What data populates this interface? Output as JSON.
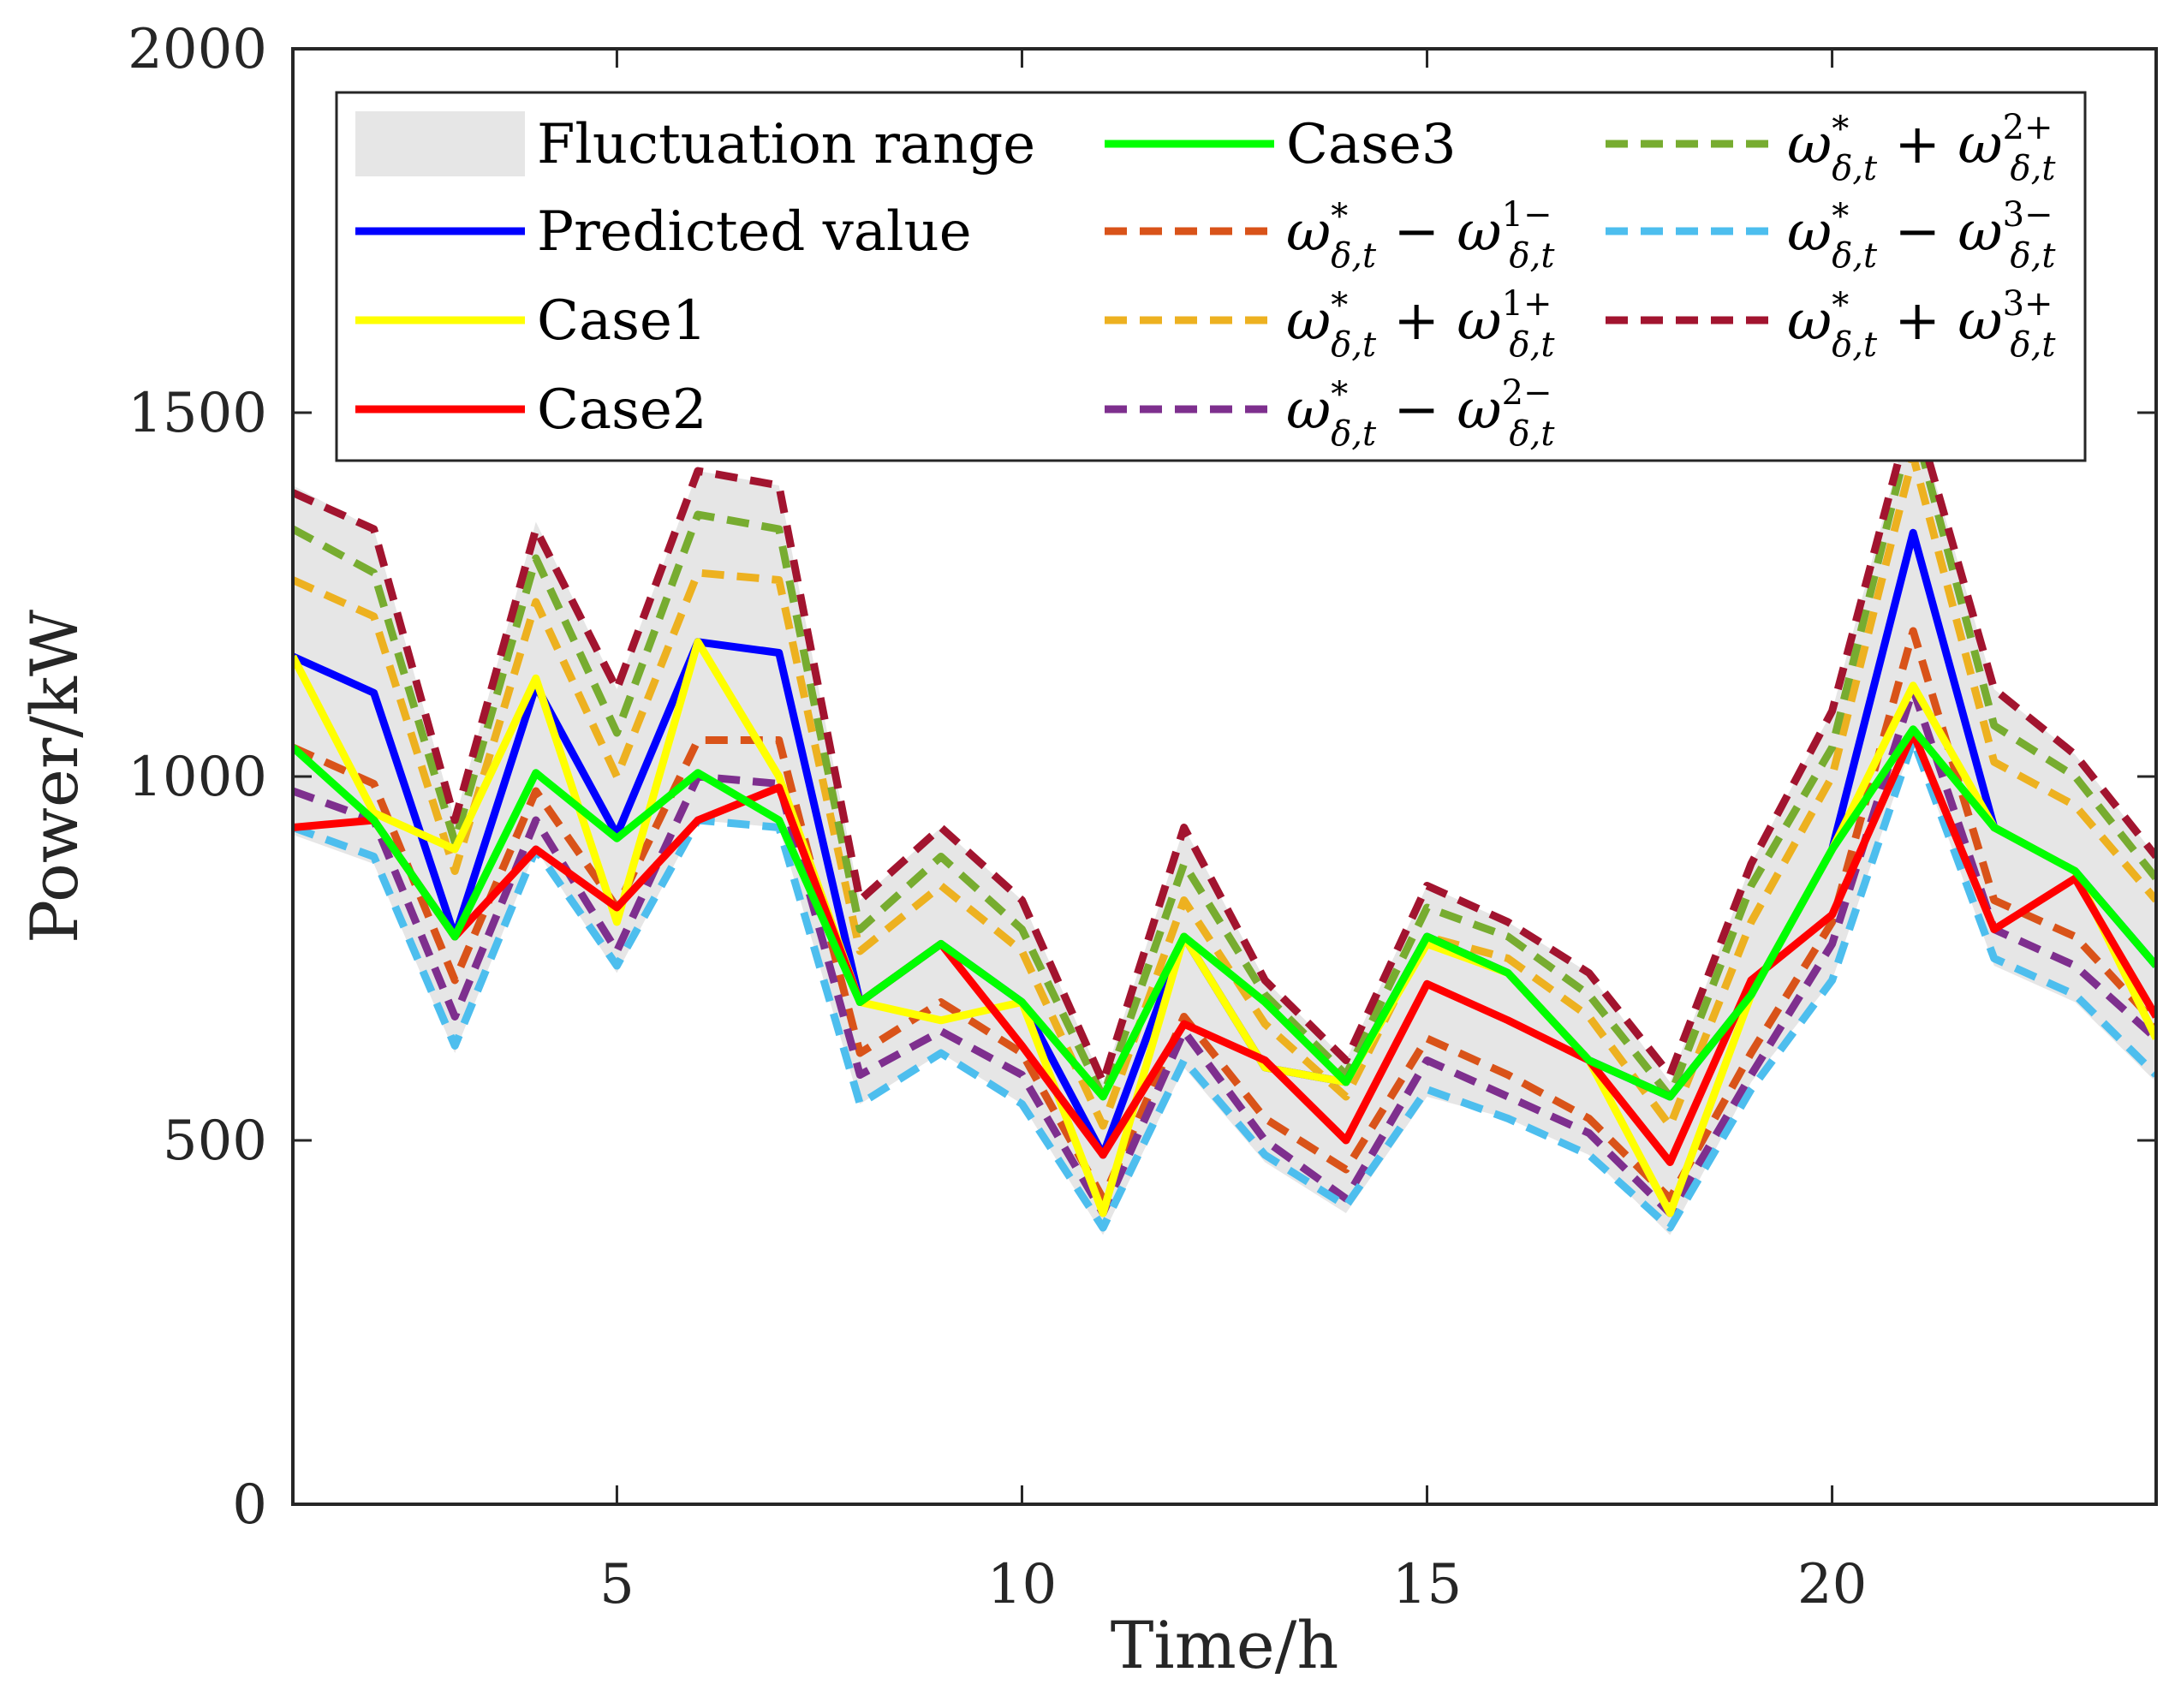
{
  "chart_data": {
    "type": "line",
    "title": "",
    "xlabel": "Time/h",
    "ylabel": "Power/kW",
    "xlim": [
      1,
      24
    ],
    "ylim": [
      0,
      2000
    ],
    "xticks": [
      5,
      10,
      15,
      20
    ],
    "yticks": [
      0,
      500,
      1000,
      1500,
      2000
    ],
    "grid": false,
    "legend_position": "top",
    "x": [
      1,
      2,
      3,
      4,
      5,
      6,
      7,
      8,
      9,
      10,
      11,
      12,
      13,
      14,
      15,
      16,
      17,
      18,
      19,
      20,
      21,
      22,
      23,
      24
    ],
    "band": {
      "name": "Fluctuation range",
      "color": "#e6e6e6",
      "lower": [
        920,
        880,
        620,
        900,
        730,
        940,
        930,
        550,
        620,
        550,
        370,
        600,
        470,
        400,
        560,
        530,
        480,
        370,
        580,
        720,
        1050,
        740,
        690,
        580
      ],
      "upper": [
        1400,
        1340,
        940,
        1350,
        1120,
        1420,
        1400,
        830,
        930,
        830,
        580,
        930,
        720,
        610,
        850,
        800,
        730,
        580,
        880,
        1090,
        1510,
        1120,
        1030,
        890
      ]
    },
    "series": [
      {
        "name": "Predicted value",
        "color": "#0000ff",
        "dash": "solid",
        "width": 9,
        "values": [
          1165,
          1115,
          780,
          1125,
          920,
          1185,
          1170,
          690,
          770,
          690,
          480,
          780,
          600,
          580,
          780,
          730,
          610,
          560,
          700,
          900,
          1335,
          930,
          870,
          740
        ]
      },
      {
        "name": "Case1",
        "color": "#ffff00",
        "dash": "solid",
        "width": 9,
        "values": [
          1165,
          950,
          900,
          1135,
          800,
          1185,
          1000,
          690,
          665,
          690,
          400,
          780,
          600,
          580,
          770,
          730,
          610,
          400,
          700,
          900,
          1125,
          930,
          870,
          640
        ]
      },
      {
        "name": "Case2",
        "color": "#ff0000",
        "dash": "solid",
        "width": 9,
        "values": [
          930,
          940,
          780,
          900,
          820,
          940,
          985,
          690,
          770,
          630,
          480,
          660,
          610,
          500,
          715,
          665,
          610,
          470,
          720,
          810,
          1060,
          790,
          860,
          670
        ]
      },
      {
        "name": "Case3",
        "color": "#00ff00",
        "dash": "solid",
        "width": 9,
        "values": [
          1040,
          940,
          780,
          1005,
          915,
          1005,
          940,
          690,
          770,
          690,
          560,
          780,
          690,
          580,
          780,
          730,
          610,
          560,
          700,
          900,
          1065,
          930,
          870,
          740
        ]
      },
      {
        "name": "ω*δ,t − ω1−δ,t",
        "color": "#d95319",
        "dash": "dashed",
        "width": 9,
        "values": [
          1040,
          990,
          720,
          980,
          820,
          1050,
          1050,
          620,
          690,
          620,
          420,
          670,
          530,
          460,
          640,
          590,
          530,
          420,
          620,
          800,
          1200,
          830,
          780,
          660
        ]
      },
      {
        "name": "ω*δ,t + ω1+δ,t",
        "color": "#edb120",
        "dash": "dashed",
        "width": 9,
        "values": [
          1270,
          1220,
          870,
          1240,
          1000,
          1280,
          1270,
          760,
          850,
          760,
          520,
          830,
          660,
          560,
          780,
          750,
          670,
          520,
          800,
          1000,
          1440,
          1020,
          960,
          830
        ]
      },
      {
        "name": "ω*δ,t − ω2−δ,t",
        "color": "#7e2f8e",
        "dash": "dashed",
        "width": 9,
        "values": [
          980,
          940,
          670,
          940,
          760,
          1000,
          990,
          590,
          650,
          590,
          400,
          650,
          500,
          420,
          610,
          560,
          510,
          400,
          590,
          770,
          1120,
          790,
          740,
          640
        ]
      },
      {
        "name": "ω*δ,t + ω2+δ,t",
        "color": "#77ac30",
        "dash": "dashed",
        "width": 9,
        "values": [
          1340,
          1280,
          910,
          1300,
          1060,
          1360,
          1340,
          790,
          890,
          790,
          560,
          880,
          700,
          590,
          820,
          780,
          700,
          560,
          850,
          1040,
          1490,
          1070,
          1000,
          860
        ]
      },
      {
        "name": "ω*δ,t − ω3−δ,t",
        "color": "#4dbeee",
        "dash": "dashed",
        "width": 9,
        "values": [
          930,
          890,
          630,
          900,
          740,
          940,
          930,
          550,
          620,
          550,
          380,
          610,
          480,
          410,
          570,
          530,
          480,
          380,
          570,
          720,
          1050,
          750,
          700,
          590
        ]
      },
      {
        "name": "ω*δ,t + ω3+δ,t",
        "color": "#a2142f",
        "dash": "dashed",
        "width": 9,
        "values": [
          1390,
          1340,
          940,
          1340,
          1120,
          1420,
          1400,
          830,
          930,
          830,
          580,
          930,
          720,
          610,
          850,
          800,
          730,
          590,
          880,
          1090,
          1510,
          1120,
          1030,
          890
        ]
      }
    ],
    "legend_entries": [
      {
        "text": "Fluctuation range",
        "kind": "band",
        "color": "#e6e6e6"
      },
      {
        "text": "Predicted value",
        "kind": "line",
        "color": "#0000ff"
      },
      {
        "text": "Case1",
        "kind": "line",
        "color": "#ffff00"
      },
      {
        "text": "Case2",
        "kind": "line",
        "color": "#ff0000"
      },
      {
        "text": "Case3",
        "kind": "line",
        "color": "#00ff00"
      },
      {
        "op": "−",
        "sup": "1−",
        "kind": "dash",
        "color": "#d95319"
      },
      {
        "op": "+",
        "sup": "1+",
        "kind": "dash",
        "color": "#edb120"
      },
      {
        "op": "−",
        "sup": "2−",
        "kind": "dash",
        "color": "#7e2f8e"
      },
      {
        "op": "+",
        "sup": "2+",
        "kind": "dash",
        "color": "#77ac30"
      },
      {
        "op": "−",
        "sup": "3−",
        "kind": "dash",
        "color": "#4dbeee"
      },
      {
        "op": "+",
        "sup": "3+",
        "kind": "dash",
        "color": "#a2142f"
      }
    ],
    "legend_math": {
      "base": "ω",
      "star": "*",
      "sub": "δ,t"
    }
  }
}
